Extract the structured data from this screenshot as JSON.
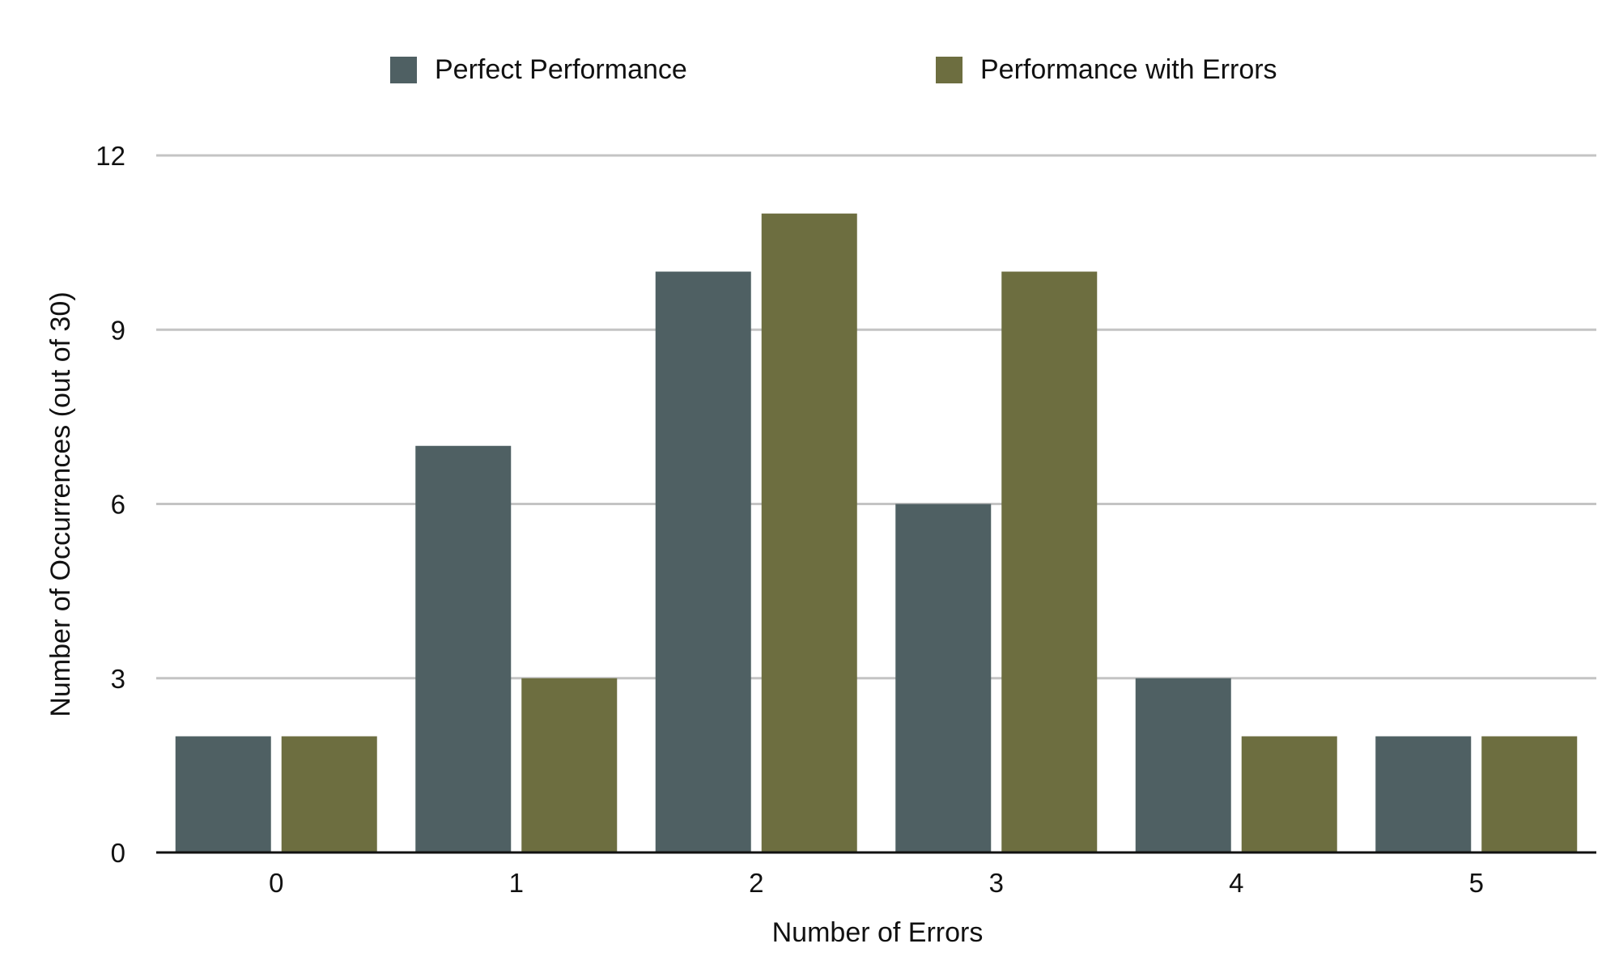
{
  "chart_data": {
    "type": "bar",
    "title": "",
    "xlabel": "Number of Errors",
    "ylabel": "Number of Occurrences (out of 30)",
    "categories": [
      "0",
      "1",
      "2",
      "3",
      "4",
      "5"
    ],
    "series": [
      {
        "name": "Perfect Performance",
        "color": "#4f6063",
        "values": [
          2,
          7,
          10,
          6,
          3,
          2
        ]
      },
      {
        "name": "Performance with Errors",
        "color": "#6d6e40",
        "values": [
          2,
          3,
          11,
          10,
          2,
          2
        ]
      }
    ],
    "ylim": [
      0,
      12
    ],
    "yticks": [
      "0",
      "3",
      "6",
      "9",
      "12"
    ],
    "grid": true,
    "legend_position": "top"
  }
}
